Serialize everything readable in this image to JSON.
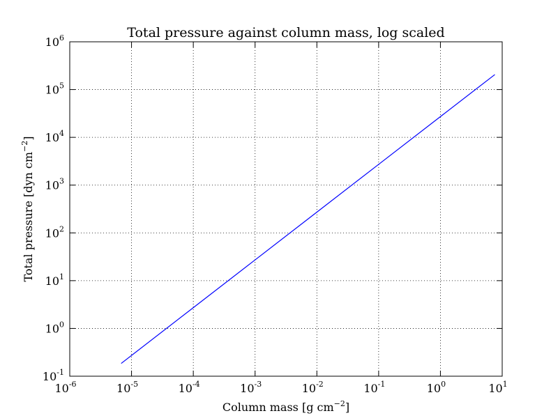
{
  "chart_data": {
    "type": "line",
    "title": "Total pressure against column mass, log scaled",
    "xlabel": {
      "base": "Column mass [g cm",
      "sup": "−2",
      "end": "]"
    },
    "ylabel": {
      "base": "Total pressure [dyn cm",
      "sup": "−2",
      "end": "]"
    },
    "xscale": "log",
    "yscale": "log",
    "xlim": [
      1e-06,
      10
    ],
    "ylim": [
      0.1,
      1000000.0
    ],
    "grid": true,
    "legend": "none",
    "x_ticks": [
      {
        "base": "10",
        "exp": "-6"
      },
      {
        "base": "10",
        "exp": "-5"
      },
      {
        "base": "10",
        "exp": "-4"
      },
      {
        "base": "10",
        "exp": "-3"
      },
      {
        "base": "10",
        "exp": "-2"
      },
      {
        "base": "10",
        "exp": "-1"
      },
      {
        "base": "10",
        "exp": "0"
      },
      {
        "base": "10",
        "exp": "1"
      }
    ],
    "y_ticks": [
      {
        "base": "10",
        "exp": "-1"
      },
      {
        "base": "10",
        "exp": "0"
      },
      {
        "base": "10",
        "exp": "1"
      },
      {
        "base": "10",
        "exp": "2"
      },
      {
        "base": "10",
        "exp": "3"
      },
      {
        "base": "10",
        "exp": "4"
      },
      {
        "base": "10",
        "exp": "5"
      },
      {
        "base": "10",
        "exp": "6"
      }
    ],
    "series": [
      {
        "color": "#0000ff",
        "x": [
          6.8e-06,
          0.0001,
          0.001,
          0.01,
          0.1,
          1,
          7.6
        ],
        "y": [
          0.185,
          2.72,
          27.2,
          272,
          2720,
          27200,
          206000
        ]
      }
    ]
  }
}
